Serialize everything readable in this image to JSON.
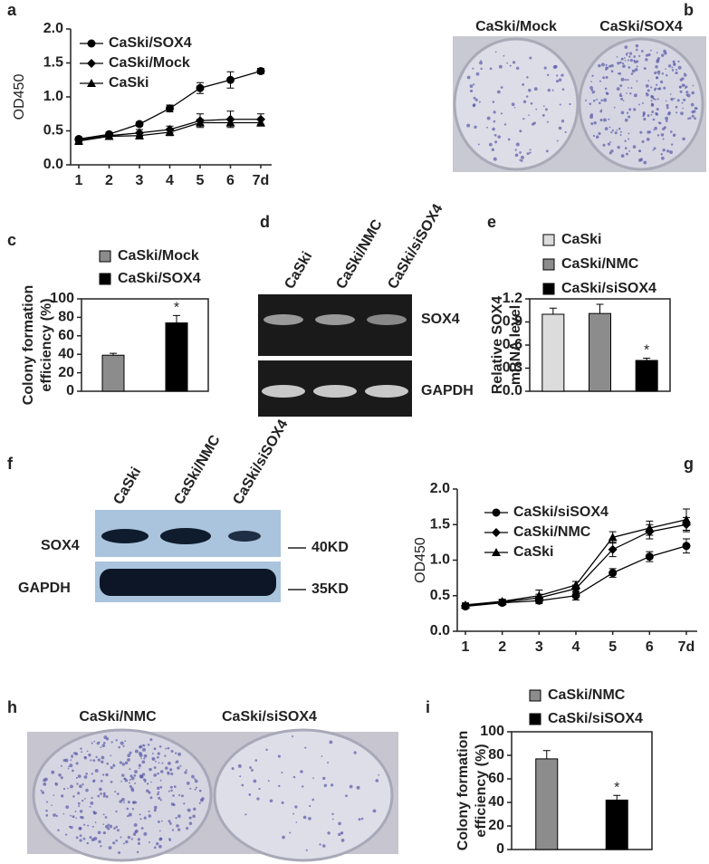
{
  "panel_letters": [
    "a",
    "b",
    "c",
    "d",
    "e",
    "f",
    "g",
    "h",
    "i"
  ],
  "images": {
    "b": {
      "labels": [
        "CaSki/Mock",
        "CaSki/SOX4"
      ]
    },
    "d": {
      "lanes": [
        "CaSki",
        "CaSki/NMC",
        "CaSki/siSOX4"
      ],
      "bands": [
        "SOX4",
        "GAPDH"
      ]
    },
    "f": {
      "lanes": [
        "CaSki",
        "CaSki/NMC",
        "CaSki/siSOX4"
      ],
      "bands": [
        "SOX4",
        "GAPDH"
      ],
      "sizes": [
        "40KD",
        "35KD"
      ]
    },
    "h": {
      "labels": [
        "CaSki/NMC",
        "CaSki/siSOX4"
      ]
    }
  },
  "chart_data": [
    {
      "type": "line",
      "ylabel": "OD450",
      "categories": [
        "1",
        "2",
        "3",
        "4",
        "5",
        "6",
        "7d"
      ],
      "ylim": [
        0,
        2
      ],
      "yticks": [
        {
          "value": 0,
          "label": "0.0"
        },
        0.5,
        {
          "value": 1,
          "label": "1.0"
        },
        1.5,
        {
          "value": 2,
          "label": "2.0"
        }
      ],
      "series": [
        {
          "name": "CaSki/SOX4",
          "color": "#000000",
          "marker": "circle",
          "values": [
            0.38,
            0.45,
            0.6,
            0.83,
            1.13,
            1.25,
            1.38
          ],
          "errors": [
            0.03,
            0.03,
            0.03,
            0.05,
            0.08,
            0.12,
            0.04
          ]
        },
        {
          "name": "CaSki/Mock",
          "color": "#000000",
          "marker": "diamond",
          "values": [
            0.37,
            0.43,
            0.47,
            0.52,
            0.65,
            0.67,
            0.67
          ],
          "errors": [
            0.03,
            0.03,
            0.05,
            0.05,
            0.1,
            0.12,
            0.08
          ]
        },
        {
          "name": "CaSki",
          "color": "#000000",
          "marker": "triangle",
          "values": [
            0.35,
            0.42,
            0.43,
            0.48,
            0.62,
            0.62,
            0.62
          ],
          "errors": [
            0.05,
            0.03,
            0.05,
            0.05,
            0.05,
            0.05,
            0.05
          ]
        }
      ]
    },
    {
      "type": "bar",
      "ylabel": [
        "Colony formation",
        "efficiency (%)"
      ],
      "annotation": "*",
      "ylim": [
        0,
        100
      ],
      "yticks": [
        0,
        20,
        40,
        60,
        80,
        100
      ],
      "series": [
        {
          "name": "CaSki/Mock",
          "color": "#8c8c8c",
          "values": [
            39
          ],
          "errors": [
            2
          ]
        },
        {
          "name": "CaSki/SOX4",
          "color": "#000000",
          "values": [
            74
          ],
          "errors": [
            8
          ]
        }
      ]
    },
    {
      "type": "bar",
      "ylabel": [
        "Relative SOX4",
        "mRNA level"
      ],
      "annotation": "*",
      "ylim": [
        0,
        1.2
      ],
      "yticks": [
        {
          "value": 0,
          "label": "0.0"
        },
        0.3,
        0.6,
        0.9,
        1.2
      ],
      "series": [
        {
          "name": "CaSki",
          "color": "#dcdcdc",
          "values": [
            1.0
          ],
          "errors": [
            0.08
          ]
        },
        {
          "name": "CaSki/NMC",
          "color": "#8c8c8c",
          "values": [
            1.01
          ],
          "errors": [
            0.12
          ]
        },
        {
          "name": "CaSki/siSOX4",
          "color": "#000000",
          "values": [
            0.4
          ],
          "errors": [
            0.03
          ]
        }
      ]
    },
    {
      "type": "line",
      "ylabel": "OD450",
      "categories": [
        "1",
        "2",
        "3",
        "4",
        "5",
        "6",
        "7d"
      ],
      "ylim": [
        0,
        2
      ],
      "yticks": [
        {
          "value": 0,
          "label": "0.0"
        },
        0.5,
        {
          "value": 1,
          "label": "1.0"
        },
        1.5,
        {
          "value": 2,
          "label": "2.0"
        }
      ],
      "series": [
        {
          "name": "CaSki/siSOX4",
          "color": "#000000",
          "marker": "circle",
          "values": [
            0.35,
            0.4,
            0.43,
            0.5,
            0.82,
            1.05,
            1.2
          ],
          "errors": [
            0.03,
            0.03,
            0.04,
            0.06,
            0.06,
            0.07,
            0.1
          ]
        },
        {
          "name": "CaSki/NMC",
          "color": "#000000",
          "marker": "diamond",
          "values": [
            0.36,
            0.41,
            0.47,
            0.6,
            1.15,
            1.4,
            1.5
          ],
          "errors": [
            0.03,
            0.03,
            0.05,
            0.05,
            0.1,
            0.1,
            0.1
          ]
        },
        {
          "name": "CaSki",
          "color": "#000000",
          "marker": "triangle",
          "values": [
            0.37,
            0.42,
            0.5,
            0.65,
            1.32,
            1.45,
            1.57
          ],
          "errors": [
            0.03,
            0.03,
            0.08,
            0.05,
            0.08,
            0.1,
            0.15
          ]
        }
      ]
    },
    {
      "type": "bar",
      "ylabel": [
        "Colony formation",
        "efficiency (%)"
      ],
      "annotation": "*",
      "ylim": [
        0,
        100
      ],
      "yticks": [
        0,
        20,
        40,
        60,
        80,
        100
      ],
      "series": [
        {
          "name": "CaSki/NMC",
          "color": "#8c8c8c",
          "values": [
            77
          ],
          "errors": [
            7
          ]
        },
        {
          "name": "CaSki/siSOX4",
          "color": "#000000",
          "values": [
            42
          ],
          "errors": [
            4
          ]
        }
      ]
    }
  ]
}
